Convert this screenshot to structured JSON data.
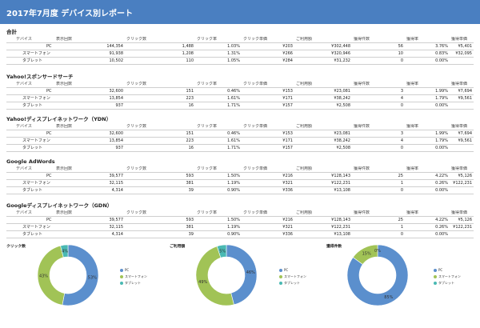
{
  "title": "2017年7月度 デバイス別レポート",
  "columns": [
    "デバイス",
    "表示回数",
    "クリック数",
    "クリック率",
    "クリック単価",
    "ご利用額",
    "獲得件数",
    "獲得率",
    "獲得単価"
  ],
  "sections": [
    {
      "title": "合計",
      "rows": [
        [
          "PC",
          "144,354",
          "1,488",
          "1.03%",
          "¥203",
          "¥302,448",
          "56",
          "3.76%",
          "¥5,401"
        ],
        [
          "スマートフォン",
          "91,938",
          "1,208",
          "1.31%",
          "¥266",
          "¥320,946",
          "10",
          "0.83%",
          "¥32,095"
        ],
        [
          "タブレット",
          "10,502",
          "110",
          "1.05%",
          "¥284",
          "¥31,232",
          "0",
          "0.00%",
          ""
        ]
      ]
    },
    {
      "title": "Yahoo!スポンサードサーチ",
      "rows": [
        [
          "PC",
          "32,600",
          "151",
          "0.46%",
          "¥153",
          "¥23,081",
          "3",
          "1.99%",
          "¥7,694"
        ],
        [
          "スマートフォン",
          "13,854",
          "223",
          "1.61%",
          "¥171",
          "¥38,242",
          "4",
          "1.79%",
          "¥9,561"
        ],
        [
          "タブレット",
          "937",
          "16",
          "1.71%",
          "¥157",
          "¥2,508",
          "0",
          "0.00%",
          ""
        ]
      ]
    },
    {
      "title": "Yahoo!ディスプレイネットワーク（YDN）",
      "rows": [
        [
          "PC",
          "32,600",
          "151",
          "0.46%",
          "¥153",
          "¥23,081",
          "3",
          "1.99%",
          "¥7,694"
        ],
        [
          "スマートフォン",
          "13,854",
          "223",
          "1.61%",
          "¥171",
          "¥38,242",
          "4",
          "1.79%",
          "¥9,561"
        ],
        [
          "タブレット",
          "937",
          "16",
          "1.71%",
          "¥157",
          "¥2,508",
          "0",
          "0.00%",
          ""
        ]
      ]
    },
    {
      "title": "Google AdWords",
      "rows": [
        [
          "PC",
          "39,577",
          "593",
          "1.50%",
          "¥216",
          "¥128,143",
          "25",
          "4.22%",
          "¥5,126"
        ],
        [
          "スマートフォン",
          "32,115",
          "381",
          "1.19%",
          "¥321",
          "¥122,231",
          "1",
          "0.26%",
          "¥122,231"
        ],
        [
          "タブレット",
          "4,314",
          "39",
          "0.90%",
          "¥336",
          "¥13,108",
          "0",
          "0.00%",
          ""
        ]
      ]
    },
    {
      "title": "Googleディスプレイネットワーク（GDN）",
      "rows": [
        [
          "PC",
          "39,577",
          "593",
          "1.50%",
          "¥216",
          "¥128,143",
          "25",
          "4.22%",
          "¥5,126"
        ],
        [
          "スマートフォン",
          "32,115",
          "381",
          "1.19%",
          "¥321",
          "¥122,231",
          "1",
          "0.26%",
          "¥122,231"
        ],
        [
          "タブレット",
          "4,314",
          "39",
          "0.90%",
          "¥336",
          "¥13,108",
          "0",
          "0.00%",
          ""
        ]
      ]
    }
  ],
  "chart_data": [
    {
      "type": "pie",
      "title": "クリック数",
      "categories": [
        "PC",
        "スマートフォン",
        "タブレット"
      ],
      "values": [
        53,
        43,
        4
      ],
      "value_labels": [
        "53%",
        "43%",
        "4%"
      ]
    },
    {
      "type": "pie",
      "title": "ご利用額",
      "categories": [
        "PC",
        "スマートフォン",
        "タブレット"
      ],
      "values": [
        46,
        49,
        5
      ],
      "value_labels": [
        "46%",
        "49%",
        "5%"
      ]
    },
    {
      "type": "pie",
      "title": "獲得件数",
      "categories": [
        "PC",
        "スマートフォン",
        "タブレット"
      ],
      "values": [
        85,
        15,
        0
      ],
      "value_labels": [
        "85%",
        "15%",
        "0%"
      ]
    }
  ],
  "colors": {
    "header": "#4a7fc1",
    "pc": "#5b8fcd",
    "smartphone": "#a1c356",
    "tablet": "#4ab9b3"
  }
}
